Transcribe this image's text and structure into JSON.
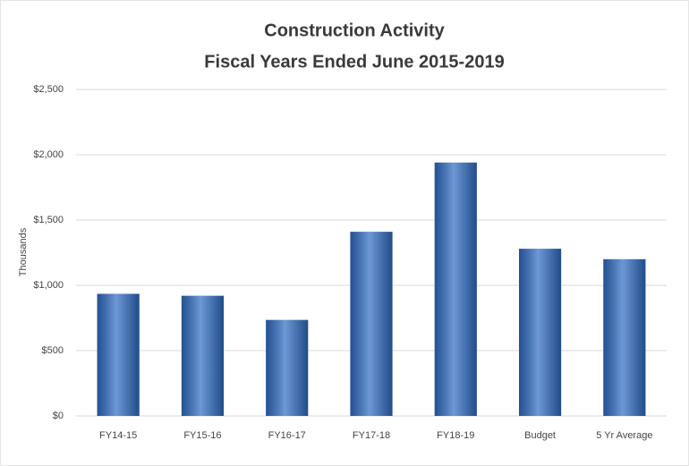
{
  "chart_data": {
    "type": "bar",
    "title": "Construction  Activity",
    "subtitle": "Fiscal Years Ended June 2015-2019",
    "y_label": "Thousands",
    "categories": [
      "FY14-15",
      "FY15-16",
      "FY16-17",
      "FY17-18",
      "FY18-19",
      "Budget",
      "5 Yr Average"
    ],
    "values": [
      935,
      920,
      735,
      1410,
      1940,
      1280,
      1200
    ],
    "color": "#2f6cc4",
    "ylim": [
      0,
      2500
    ],
    "yticks": [
      {
        "value": 0,
        "label": "$0"
      },
      {
        "value": 500,
        "label": "$500"
      },
      {
        "value": 1000,
        "label": "$1,000"
      },
      {
        "value": 1500,
        "label": "$1,500"
      },
      {
        "value": 2000,
        "label": "$2,000"
      },
      {
        "value": 2500,
        "label": "$2,500"
      }
    ],
    "grid": true
  }
}
